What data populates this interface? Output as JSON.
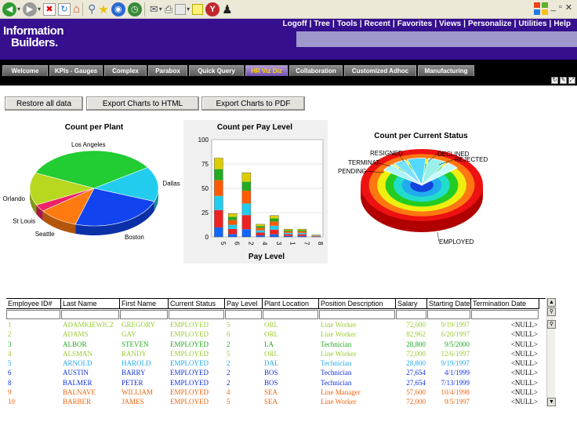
{
  "browser": {
    "icons": [
      "back-icon",
      "forward-icon",
      "stop-icon",
      "refresh-icon",
      "home-icon",
      "search-icon",
      "favorites-icon",
      "media-icon",
      "history-icon",
      "mail-icon",
      "print-icon",
      "edit-icon",
      "discuss-icon",
      "yahoo-icon",
      "messenger-icon"
    ]
  },
  "header": {
    "logo_line1": "Information",
    "logo_line2": "Builders.",
    "nav": [
      "Logoff",
      "Tree",
      "Tools",
      "Recent",
      "Favorites",
      "Views",
      "Personalize",
      "Utilities",
      "Help"
    ]
  },
  "tabs": [
    {
      "label": "Welcome",
      "active": false
    },
    {
      "label": "KPIs - Gauges",
      "active": false
    },
    {
      "label": "Complex",
      "active": false
    },
    {
      "label": "Parabox",
      "active": false
    },
    {
      "label": "Quick Query",
      "active": false
    },
    {
      "label": "HR Viz Diz",
      "active": true
    },
    {
      "label": "Collaboration",
      "active": false
    },
    {
      "label": "Customized Adhoc",
      "active": false
    },
    {
      "label": "Manufacturing",
      "active": false
    }
  ],
  "actions": {
    "restore": "Restore all data",
    "export_html": "Export Charts to HTML",
    "export_pdf": "Export Charts to PDF"
  },
  "chart_data": [
    {
      "type": "pie",
      "title": "Count per Plant",
      "categories": [
        "Los Angeles",
        "Dallas",
        "Boston",
        "Seattle",
        "St Louis",
        "Orlando"
      ],
      "values": [
        34,
        15,
        24,
        10,
        3,
        14
      ],
      "colors": [
        "#22cc33",
        "#22ccee",
        "#1144ee",
        "#ff7a10",
        "#ee2266",
        "#b8d820"
      ]
    },
    {
      "type": "bar",
      "title": "Count per Pay Level",
      "xlabel": "Pay Level",
      "ylabel": "",
      "categories": [
        "5",
        "6",
        "2",
        "4",
        "3",
        "1",
        "7",
        "8"
      ],
      "values": [
        81,
        24,
        66,
        13,
        22,
        8,
        8,
        2
      ],
      "ylim": [
        0,
        100
      ],
      "yticks": [
        0,
        25,
        50,
        75,
        100
      ],
      "grid": true,
      "colors": [
        "#ff5a00",
        "#22aa22",
        "#ddcc00",
        "#1166ff",
        "#ee2222",
        "#22ccee"
      ]
    },
    {
      "type": "pie",
      "title": "Count per Current Status",
      "categories": [
        "EMPLOYED",
        "PENDING",
        "TERMINAT",
        "RESIGNED",
        "DECLINED",
        "REJECTED"
      ],
      "values": [
        88,
        2,
        2,
        3,
        3,
        2
      ],
      "ring_colors": [
        "#ee1111",
        "#ff7711",
        "#eeee11",
        "#22cc22",
        "#22ddcc",
        "#22aaee",
        "#1144dd"
      ]
    }
  ],
  "table": {
    "headers": [
      "Employee ID#",
      "Last Name",
      "First Name",
      "Current Status",
      "Pay Level",
      "Plant Location",
      "Position Description",
      "Salary",
      "Starting Date",
      "Termination Date"
    ],
    "rows": [
      {
        "c": [
          "1",
          "ADAMKIEWICZ",
          "GREGORY",
          "EMPLOYED",
          "5",
          "ORL",
          "Line Worker",
          "72,000",
          "9/19/1997",
          "<NULL>"
        ],
        "color": "#9acd32"
      },
      {
        "c": [
          "2",
          "ADAMS",
          "GAY",
          "EMPLOYED",
          "6",
          "ORL",
          "Line Worker",
          "82,962",
          "6/20/1997",
          "<NULL>"
        ],
        "color": "#9acd32"
      },
      {
        "c": [
          "3",
          "ALBOR",
          "STEVEN",
          "EMPLOYED",
          "2",
          "LA",
          "Technician",
          "28,800",
          "9/5/2000",
          "<NULL>"
        ],
        "color": "#22aa22"
      },
      {
        "c": [
          "4",
          "ALSMAN",
          "RANDY",
          "EMPLOYED",
          "5",
          "ORL",
          "Line Worker",
          "72,000",
          "12/6/1997",
          "<NULL>"
        ],
        "color": "#9acd32"
      },
      {
        "c": [
          "5",
          "ARNOLD",
          "HAROLD",
          "EMPLOYED",
          "2",
          "DAL",
          "Technician",
          "28,800",
          "9/19/1997",
          "<NULL>"
        ],
        "color": "#22aaee"
      },
      {
        "c": [
          "6",
          "AUSTIN",
          "BARRY",
          "EMPLOYED",
          "2",
          "BOS",
          "Technician",
          "27,654",
          "4/1/1999",
          "<NULL>"
        ],
        "color": "#1133dd"
      },
      {
        "c": [
          "8",
          "BALMER",
          "PETER",
          "EMPLOYED",
          "2",
          "BOS",
          "Technician",
          "27,654",
          "7/13/1999",
          "<NULL>"
        ],
        "color": "#1133dd"
      },
      {
        "c": [
          "9",
          "BALNAVE",
          "WILLIAM",
          "EMPLOYED",
          "4",
          "SEA",
          "Line Manager",
          "57,600",
          "10/4/1998",
          "<NULL>"
        ],
        "color": "#ee6611"
      },
      {
        "c": [
          "10",
          "BARBER",
          "JAMES",
          "EMPLOYED",
          "5",
          "SEA",
          "Line Worker",
          "72,000",
          "9/5/1997",
          "<NULL>"
        ],
        "color": "#ee6611"
      }
    ]
  }
}
